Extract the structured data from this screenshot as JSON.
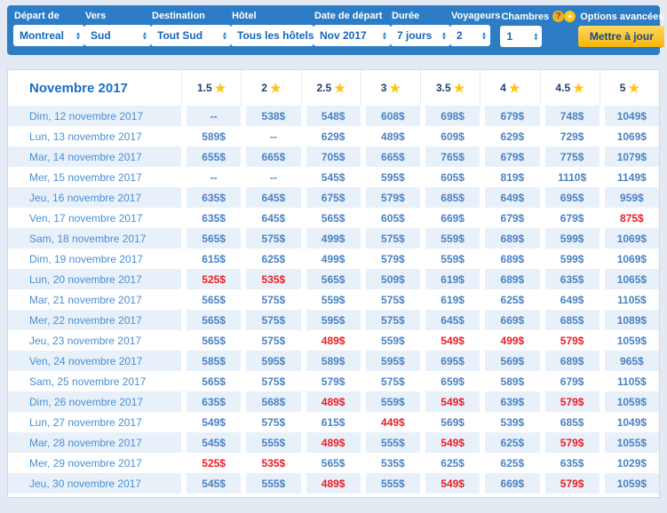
{
  "header": {
    "filters": [
      {
        "label": "Départ de",
        "value": "Montreal"
      },
      {
        "label": "Vers",
        "value": "Sud"
      },
      {
        "label": "Destination",
        "value": "Tout Sud"
      },
      {
        "label": "Hôtel",
        "value": "Tous les hôtels"
      },
      {
        "label": "Date de départ",
        "value": "Nov 2017"
      },
      {
        "label": "Durée",
        "value": "7 jours"
      },
      {
        "label": "Voyageurs",
        "value": "2"
      },
      {
        "label": "Chambres",
        "value": "1",
        "help_badge": "?"
      }
    ],
    "options_icon": "+",
    "options_label": "Options avancées",
    "update_button": "Mettre à jour"
  },
  "table": {
    "month_title": "Novembre 2017",
    "star_icon": "★",
    "star_columns": [
      "1.5",
      "2",
      "2.5",
      "3",
      "3.5",
      "4",
      "4.5",
      "5"
    ],
    "rows": [
      {
        "date": "Dim, 12 novembre 2017",
        "prices": [
          "--",
          "538$",
          "548$",
          "608$",
          "698$",
          "679$",
          "748$",
          "1049$"
        ],
        "red": []
      },
      {
        "date": "Lun, 13 novembre 2017",
        "prices": [
          "589$",
          "--",
          "629$",
          "489$",
          "609$",
          "629$",
          "729$",
          "1069$"
        ],
        "red": []
      },
      {
        "date": "Mar, 14 novembre 2017",
        "prices": [
          "655$",
          "665$",
          "705$",
          "665$",
          "765$",
          "679$",
          "775$",
          "1079$"
        ],
        "red": []
      },
      {
        "date": "Mer, 15 novembre 2017",
        "prices": [
          "--",
          "--",
          "545$",
          "595$",
          "605$",
          "819$",
          "1110$",
          "1149$"
        ],
        "red": []
      },
      {
        "date": "Jeu, 16 novembre 2017",
        "prices": [
          "635$",
          "645$",
          "675$",
          "579$",
          "685$",
          "649$",
          "695$",
          "959$"
        ],
        "red": []
      },
      {
        "date": "Ven, 17 novembre 2017",
        "prices": [
          "635$",
          "645$",
          "565$",
          "605$",
          "669$",
          "679$",
          "679$",
          "875$"
        ],
        "red": [
          7
        ]
      },
      {
        "date": "Sam, 18 novembre 2017",
        "prices": [
          "565$",
          "575$",
          "499$",
          "575$",
          "559$",
          "689$",
          "599$",
          "1069$"
        ],
        "red": []
      },
      {
        "date": "Dim, 19 novembre 2017",
        "prices": [
          "615$",
          "625$",
          "499$",
          "579$",
          "559$",
          "689$",
          "599$",
          "1069$"
        ],
        "red": []
      },
      {
        "date": "Lun, 20 novembre 2017",
        "prices": [
          "525$",
          "535$",
          "565$",
          "509$",
          "619$",
          "689$",
          "635$",
          "1065$"
        ],
        "red": [
          0,
          1
        ]
      },
      {
        "date": "Mar, 21 novembre 2017",
        "prices": [
          "565$",
          "575$",
          "559$",
          "575$",
          "619$",
          "625$",
          "649$",
          "1105$"
        ],
        "red": []
      },
      {
        "date": "Mer, 22 novembre 2017",
        "prices": [
          "565$",
          "575$",
          "595$",
          "575$",
          "645$",
          "669$",
          "685$",
          "1089$"
        ],
        "red": []
      },
      {
        "date": "Jeu, 23 novembre 2017",
        "prices": [
          "565$",
          "575$",
          "489$",
          "559$",
          "549$",
          "499$",
          "579$",
          "1059$"
        ],
        "red": [
          2,
          4,
          5,
          6
        ]
      },
      {
        "date": "Ven, 24 novembre 2017",
        "prices": [
          "585$",
          "595$",
          "589$",
          "595$",
          "695$",
          "569$",
          "689$",
          "965$"
        ],
        "red": []
      },
      {
        "date": "Sam, 25 novembre 2017",
        "prices": [
          "565$",
          "575$",
          "579$",
          "575$",
          "659$",
          "589$",
          "679$",
          "1105$"
        ],
        "red": []
      },
      {
        "date": "Dim, 26 novembre 2017",
        "prices": [
          "635$",
          "568$",
          "489$",
          "559$",
          "549$",
          "639$",
          "579$",
          "1059$"
        ],
        "red": [
          2,
          4,
          6
        ]
      },
      {
        "date": "Lun, 27 novembre 2017",
        "prices": [
          "549$",
          "575$",
          "615$",
          "449$",
          "569$",
          "539$",
          "685$",
          "1049$"
        ],
        "red": [
          3
        ]
      },
      {
        "date": "Mar, 28 novembre 2017",
        "prices": [
          "545$",
          "555$",
          "489$",
          "555$",
          "549$",
          "625$",
          "579$",
          "1055$"
        ],
        "red": [
          2,
          4,
          6
        ]
      },
      {
        "date": "Mer, 29 novembre 2017",
        "prices": [
          "525$",
          "535$",
          "565$",
          "535$",
          "625$",
          "625$",
          "635$",
          "1029$"
        ],
        "red": [
          0,
          1
        ]
      },
      {
        "date": "Jeu, 30 novembre 2017",
        "prices": [
          "545$",
          "555$",
          "489$",
          "555$",
          "549$",
          "669$",
          "579$",
          "1059$"
        ],
        "red": [
          2,
          4,
          6
        ]
      }
    ]
  },
  "colors": {
    "header_blue": "#2c7dc5",
    "accent_yellow": "#fdc513",
    "price_blue": "#4a82c3",
    "price_red": "#ed1c24",
    "stripe_blue": "#e8f1fa"
  }
}
